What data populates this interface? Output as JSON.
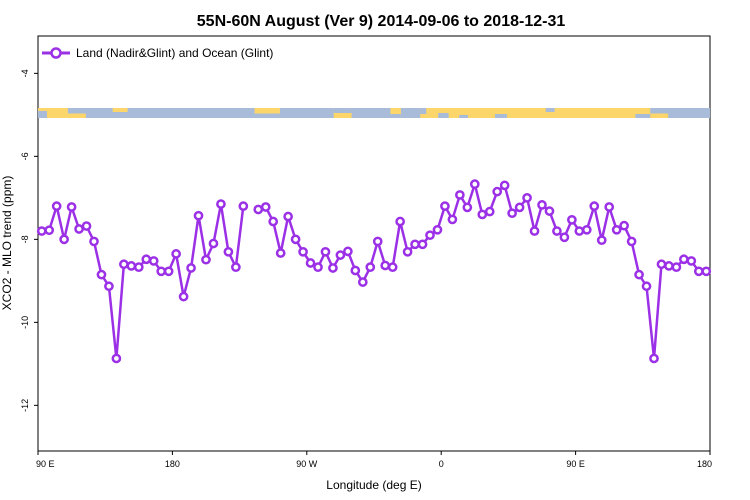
{
  "chart_data": {
    "type": "line",
    "title": "55N-60N August (Ver 9)   2014-09-06 to 2018-12-31",
    "xlabel": "Longitude (deg E)",
    "ylabel": "XCO2 - MLO trend (ppm)",
    "x_ticks": [
      {
        "value": 90,
        "label": "90 E"
      },
      {
        "value": 180,
        "label": "180"
      },
      {
        "value": 270,
        "label": "90 W"
      },
      {
        "value": 360,
        "label": "0"
      },
      {
        "value": 450,
        "label": "90 E"
      },
      {
        "value": 540,
        "label": "180"
      }
    ],
    "y_ticks": [
      -4,
      -6,
      -8,
      -10,
      -12
    ],
    "xlim": [
      90,
      540
    ],
    "ylim": [
      -13.1,
      -3.1
    ],
    "legend": {
      "position": "top-left",
      "entries": [
        "Land (Nadir&Glint) and Ocean (Glint)"
      ]
    },
    "series": [
      {
        "name": "Land (Nadir&Glint) and Ocean (Glint)",
        "color": "#9B30E6",
        "segments": [
          {
            "x": [
              92.5,
              97.5,
              102.5,
              107.5,
              112.5,
              117.5,
              122.5,
              127.5,
              132.5,
              137.5,
              142.5,
              147.5,
              152.5,
              157.5,
              162.5,
              167.5,
              172.5,
              177.5,
              182.5,
              187.5,
              192.5,
              197.5,
              202.5,
              207.5,
              212.5,
              217.5,
              222.5,
              227.5
            ],
            "y": [
              -7.8,
              -7.78,
              -7.2,
              -8.0,
              -7.22,
              -7.75,
              -7.68,
              -8.05,
              -8.85,
              -9.13,
              -10.87,
              -8.6,
              -8.64,
              -8.67,
              -8.48,
              -8.52,
              -8.77,
              -8.77,
              -8.35,
              -9.38,
              -8.69,
              -7.43,
              -8.49,
              -8.1,
              -7.15,
              -8.3,
              -8.67,
              -7.2
            ]
          },
          {
            "x": [
              237.5,
              242.5,
              247.5,
              252.5,
              257.5,
              262.5,
              267.5,
              272.5,
              277.5,
              282.5,
              287.5,
              292.5,
              297.5,
              302.5,
              307.5,
              312.5,
              317.5,
              322.5,
              327.5,
              332.5,
              337.5,
              342.5,
              347.5,
              352.5,
              357.5,
              362.5,
              367.5,
              372.5,
              377.5,
              382.5,
              387.5,
              392.5,
              397.5,
              402.5,
              407.5,
              412.5,
              417.5,
              422.5,
              427.5,
              432.5,
              437.5,
              442.5,
              447.5,
              452.5,
              457.5,
              462.5,
              467.5,
              472.5,
              477.5,
              482.5,
              487.5,
              492.5,
              497.5,
              502.5,
              507.5,
              512.5,
              517.5,
              522.5,
              527.5,
              532.5,
              537.5
            ],
            "y": [
              -7.28,
              -7.22,
              -7.57,
              -8.33,
              -7.45,
              -8.0,
              -8.3,
              -8.57,
              -8.67,
              -8.3,
              -8.69,
              -8.38,
              -8.29,
              -8.75,
              -9.03,
              -8.67,
              -8.05,
              -8.63,
              -8.67,
              -7.57,
              -8.3,
              -8.12,
              -8.12,
              -7.9,
              -7.77,
              -7.2,
              -7.52,
              -6.93,
              -7.23,
              -6.67,
              -7.4,
              -7.33,
              -6.85,
              -6.7,
              -7.37,
              -7.23,
              -7.0,
              -7.8,
              -7.17,
              -7.32,
              -7.8,
              -7.95,
              -7.53,
              -7.8,
              -7.77,
              -7.2,
              -8.02,
              -7.22,
              -7.77,
              -7.67,
              -8.05,
              -8.85,
              -9.13,
              -10.87,
              -8.6,
              -8.64,
              -8.67,
              -8.48,
              -8.52,
              -8.77,
              -8.77
            ]
          }
        ]
      }
    ],
    "land_ocean_band": {
      "land_color": "#FCD66B",
      "ocean_color": "#A8BBD9"
    }
  }
}
